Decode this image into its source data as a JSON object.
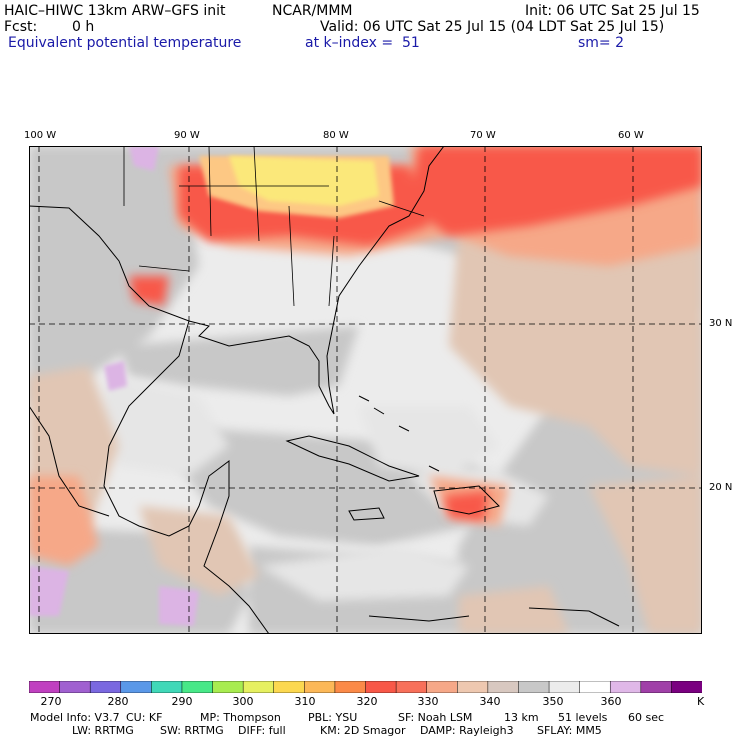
{
  "header": {
    "model": "HAIC–HIWC 13km ARW–GFS init",
    "org": "NCAR/MMM",
    "init": "Init: 06 UTC Sat 25 Jul 15",
    "fcst_label": "Fcst:",
    "fcst_value": "0 h",
    "valid": "Valid: 06 UTC Sat 25 Jul 15 (04 LDT Sat 25 Jul 15)",
    "field": "Equivalent potential temperature",
    "level": "at k–index =  51",
    "smooth": "sm= 2"
  },
  "map": {
    "lon_labels": [
      "100 W",
      "90 W",
      "80 W",
      "70 W",
      "60 W"
    ],
    "lat_labels": [
      "30 N",
      "20 N"
    ],
    "colors": {
      "ocean_base": "#ececec",
      "gray_350": "#c8c8c8",
      "tan_345": "#e1c6b4",
      "salmon_340": "#f6a888",
      "red_330": "#f8584a",
      "orange_325": "#fb8048",
      "yellow_315": "#fbe87a",
      "peach_320": "#fdc884",
      "lavender_365": "#dcb4e4"
    }
  },
  "colorbar": {
    "unit": "K",
    "labels": [
      "270",
      "280",
      "290",
      "300",
      "310",
      "320",
      "330",
      "340",
      "350",
      "360"
    ],
    "colors": [
      "#c040c0",
      "#a060d0",
      "#7a68e0",
      "#5a98e8",
      "#40d8b8",
      "#48e888",
      "#a8ec50",
      "#e6f060",
      "#fcd850",
      "#fcb858",
      "#fb8a48",
      "#f85848",
      "#f8705a",
      "#f6a888",
      "#eec8b0",
      "#d8c8c0",
      "#c8c8c8",
      "#ececec",
      "#ffffff",
      "#e0b8e8",
      "#a040a8",
      "#7a0080"
    ]
  },
  "info": {
    "line1": [
      "Model Info: V3.7",
      "CU: KF",
      "MP: Thompson",
      "PBL: YSU",
      "SF: Noah LSM",
      "13 km",
      "51 levels",
      "60 sec"
    ],
    "line2": [
      "LW: RRTMG",
      "SW: RRTMG",
      "DIFF: full",
      "KM: 2D Smagor",
      "DAMP: Rayleigh3",
      "SFLAY: MM5"
    ]
  }
}
